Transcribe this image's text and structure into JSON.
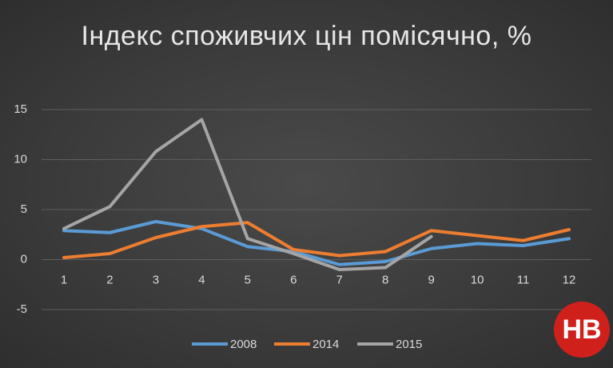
{
  "chart_data": {
    "type": "line",
    "title": "Індекс споживчих цін помісячно, %",
    "categories": [
      "1",
      "2",
      "3",
      "4",
      "5",
      "6",
      "7",
      "8",
      "9",
      "10",
      "11",
      "12"
    ],
    "series": [
      {
        "name": "2008",
        "color": "#5b9bd5",
        "values": [
          2.9,
          2.7,
          3.8,
          3.1,
          1.3,
          0.8,
          -0.5,
          -0.2,
          1.1,
          1.6,
          1.4,
          2.1
        ]
      },
      {
        "name": "2014",
        "color": "#ed7d31",
        "values": [
          0.2,
          0.6,
          2.2,
          3.3,
          3.7,
          1.0,
          0.4,
          0.8,
          2.9,
          2.4,
          1.9,
          3.0
        ]
      },
      {
        "name": "2015",
        "color": "#a5a5a5",
        "values": [
          3.1,
          5.3,
          10.8,
          14.0,
          2.1,
          0.6,
          -1.0,
          -0.8,
          2.3,
          null,
          null,
          null
        ]
      }
    ],
    "ylim": [
      -5,
      15
    ],
    "yticks": [
      -5,
      0,
      5,
      10,
      15
    ],
    "grid": true,
    "legend": "bottom"
  },
  "logo": "НВ"
}
